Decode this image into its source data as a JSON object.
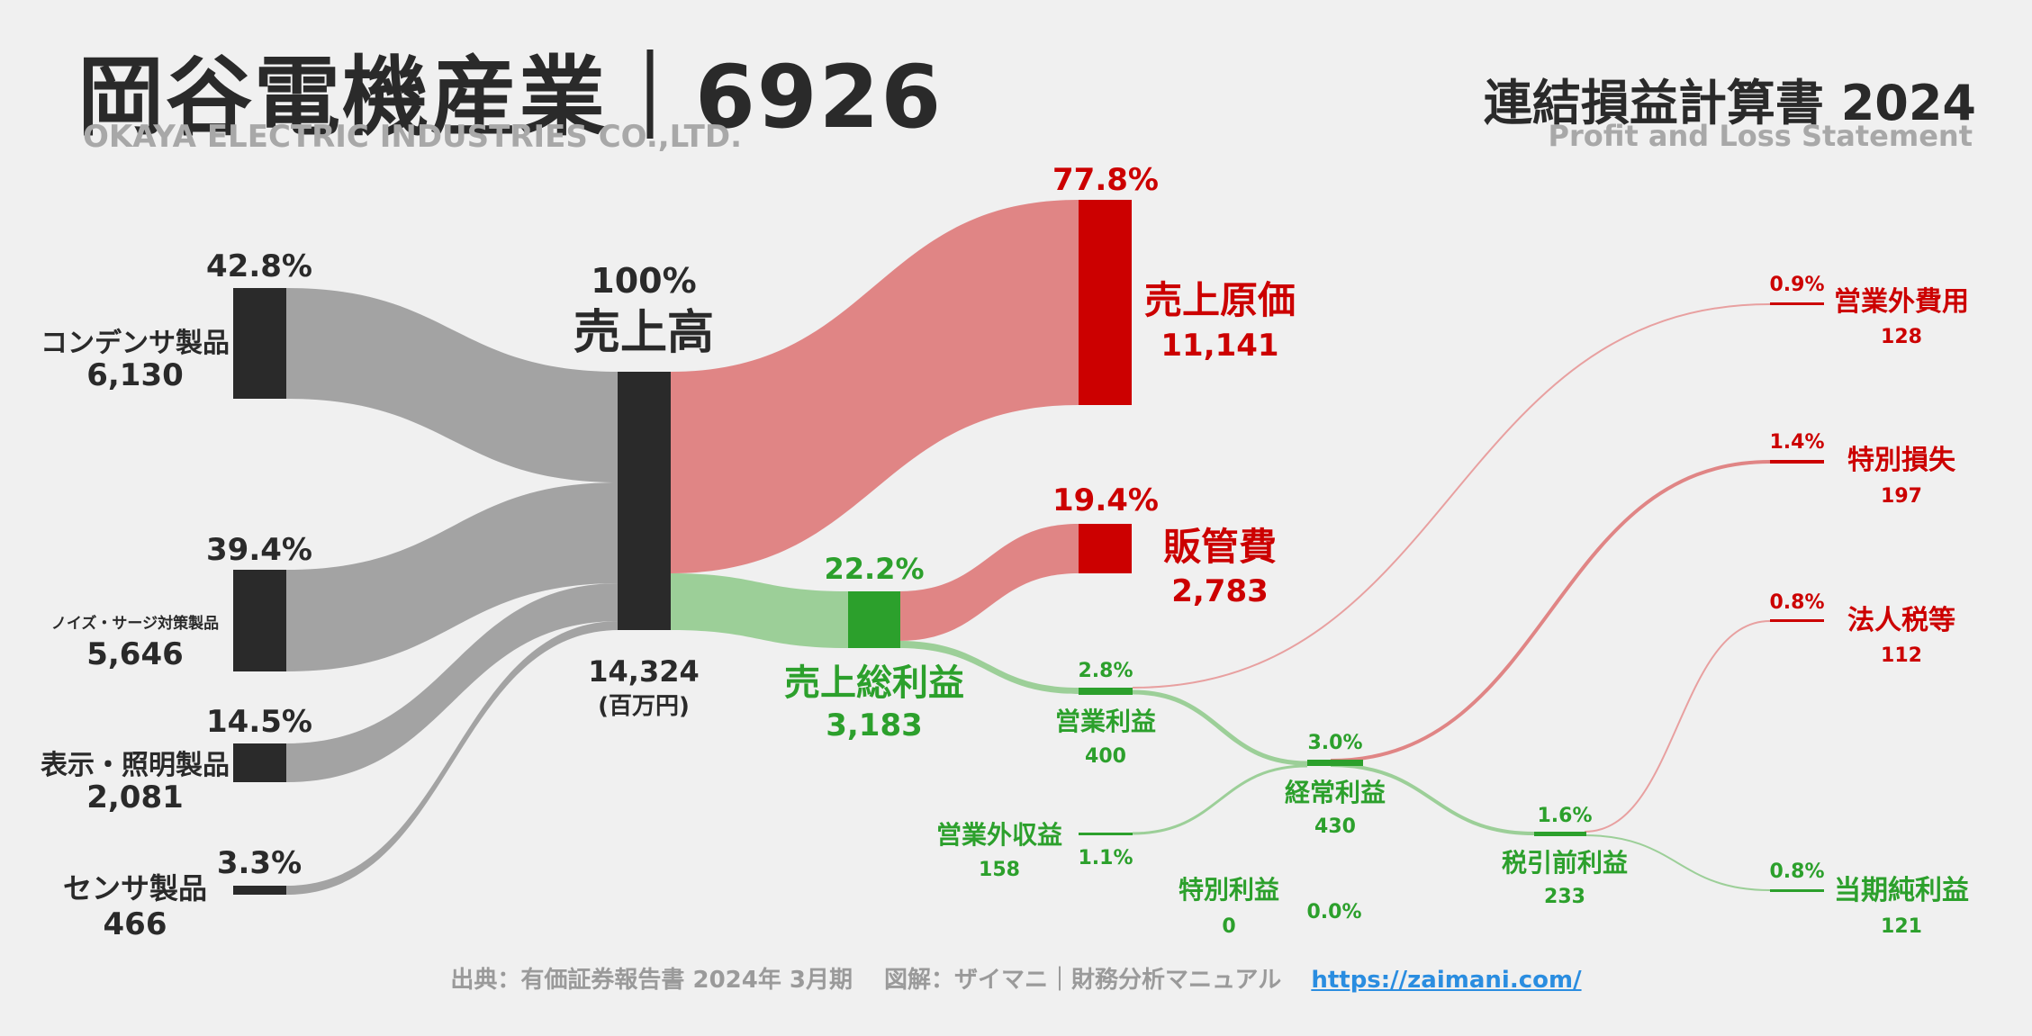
{
  "header": {
    "company_name": "岡谷電機産業｜6926",
    "company_name_en": "OKAYA ELECTRIC INDUSTRIES CO.,LTD.",
    "statement_title": "連結損益計算書 2024",
    "statement_title_en": "Profit and Loss Statement"
  },
  "footer": {
    "source": "出典：有価証券報告書 2024年 3月期　 図解：ザイマニ｜財務分析マニュアル",
    "url": "https://zaimani.com/"
  },
  "colors": {
    "gray_flow": "#a3a3a3",
    "dark_node": "#2a2a2a",
    "red_flow": "#e08585",
    "red_node": "#cc0000",
    "green_flow": "#9ccf98",
    "green_node": "#2ca02c",
    "green_text": "#2ca02c",
    "red_text": "#cc0000"
  },
  "chart_data": {
    "type": "sankey",
    "unit": "(百万円)",
    "segments": [
      {
        "name": "コンデンサ製品",
        "value": "6,130",
        "pct": "42.8%"
      },
      {
        "name": "ノイズ・サージ対策製品",
        "value": "5,646",
        "pct": "39.4%"
      },
      {
        "name": "表示・照明製品",
        "value": "2,081",
        "pct": "14.5%"
      },
      {
        "name": "センサ製品",
        "value": "466",
        "pct": "3.3%"
      }
    ],
    "revenue": {
      "name": "売上高",
      "value": "14,324",
      "pct": "100%"
    },
    "cost_of_sales": {
      "name": "売上原価",
      "value": "11,141",
      "pct": "77.8%"
    },
    "gross_profit": {
      "name": "売上総利益",
      "value": "3,183",
      "pct": "22.2%"
    },
    "sga": {
      "name": "販管費",
      "value": "2,783",
      "pct": "19.4%"
    },
    "operating_income": {
      "name": "営業利益",
      "value": "400",
      "pct": "2.8%"
    },
    "non_operating_income": {
      "name": "営業外収益",
      "value": "158",
      "pct": "1.1%"
    },
    "non_operating_expense": {
      "name": "営業外費用",
      "value": "128",
      "pct": "0.9%"
    },
    "ordinary_income": {
      "name": "経常利益",
      "value": "430",
      "pct": "3.0%"
    },
    "extraordinary_income": {
      "name": "特別利益",
      "value": "0",
      "pct": "0.0%"
    },
    "extraordinary_loss": {
      "name": "特別損失",
      "value": "197",
      "pct": "1.4%"
    },
    "pretax_income": {
      "name": "税引前利益",
      "value": "233",
      "pct": "1.6%"
    },
    "income_tax": {
      "name": "法人税等",
      "value": "112",
      "pct": "0.8%"
    },
    "net_income": {
      "name": "当期純利益",
      "value": "121",
      "pct": "0.8%"
    }
  }
}
